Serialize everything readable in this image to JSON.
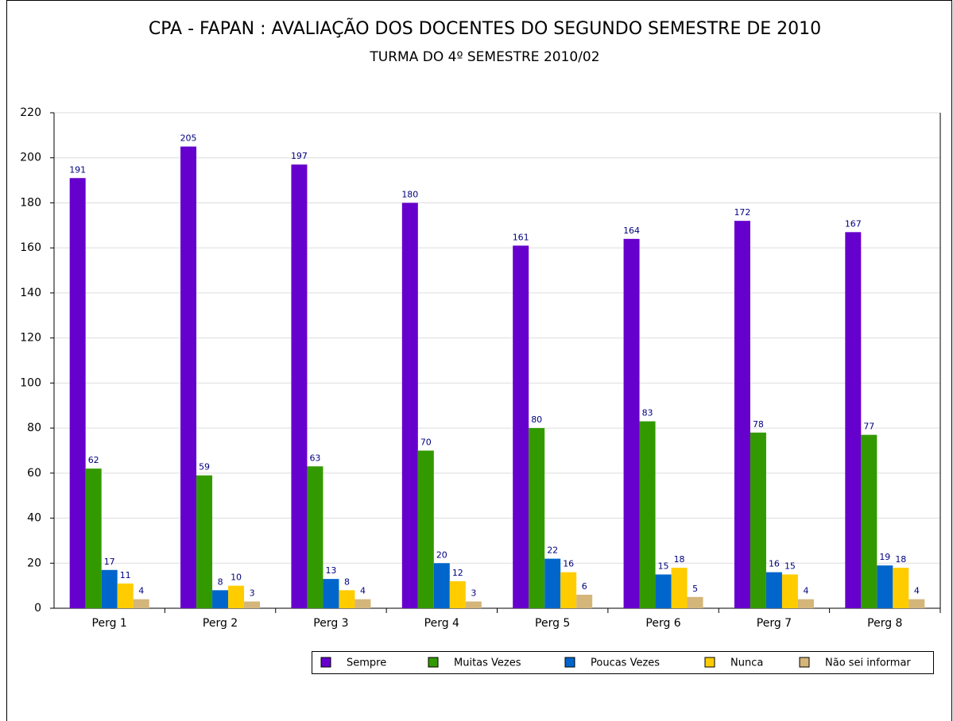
{
  "chart_data": {
    "type": "bar",
    "title": "CPA - FAPAN : AVALIAÇÃO DOS DOCENTES DO SEGUNDO SEMESTRE DE 2010",
    "subtitle": "TURMA DO 4º SEMESTRE 2010/02",
    "categories": [
      "Perg 1",
      "Perg 2",
      "Perg 3",
      "Perg 4",
      "Perg 5",
      "Perg 6",
      "Perg 7",
      "Perg 8"
    ],
    "series": [
      {
        "name": "Sempre",
        "color": "#6600cc",
        "values": [
          191,
          205,
          197,
          180,
          161,
          164,
          172,
          167
        ]
      },
      {
        "name": "Muitas Vezes",
        "color": "#339900",
        "values": [
          62,
          59,
          63,
          70,
          80,
          83,
          78,
          77
        ]
      },
      {
        "name": "Poucas Vezes",
        "color": "#0066cc",
        "values": [
          17,
          8,
          13,
          20,
          22,
          15,
          16,
          19
        ]
      },
      {
        "name": "Nunca",
        "color": "#ffcc00",
        "values": [
          11,
          10,
          8,
          12,
          16,
          18,
          15,
          18
        ]
      },
      {
        "name": "Não sei informar",
        "color": "#d4b57a",
        "values": [
          4,
          3,
          4,
          3,
          6,
          5,
          4,
          4
        ]
      }
    ],
    "ylim": [
      0,
      220
    ],
    "yticks": [
      0,
      20,
      40,
      60,
      80,
      100,
      120,
      140,
      160,
      180,
      200,
      220
    ],
    "grid": true
  }
}
